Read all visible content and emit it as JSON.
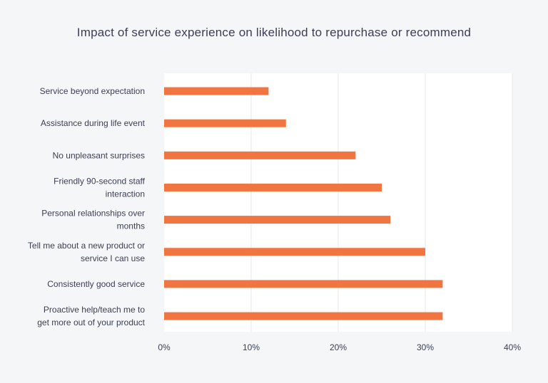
{
  "chart_data": {
    "type": "bar",
    "orientation": "horizontal",
    "title": "Impact of service experience on likelihood to repurchase or recommend",
    "categories": [
      [
        "Service beyond expectation"
      ],
      [
        "Assistance during life event"
      ],
      [
        "No unpleasant surprises"
      ],
      [
        "Friendly 90-second staff",
        "interaction"
      ],
      [
        "Personal relationships over",
        "months"
      ],
      [
        "Tell me about a new product or",
        "service I can use"
      ],
      [
        "Consistently good service"
      ],
      [
        "Proactive help/teach me to",
        "get more out of your product"
      ]
    ],
    "values": [
      12,
      14,
      22,
      25,
      26,
      30,
      32,
      32
    ],
    "xlim": [
      0,
      40
    ],
    "xticks": [
      0,
      10,
      20,
      30,
      40
    ],
    "xtick_labels": [
      "0%",
      "10%",
      "20%",
      "30%",
      "40%"
    ],
    "xlabel": "",
    "ylabel": "",
    "grid": "vertical",
    "bar_color": "#f07541",
    "grid_color": "#e6e8ee",
    "background_color": "#f5f6f8",
    "plot_background_color": "#ffffff"
  }
}
